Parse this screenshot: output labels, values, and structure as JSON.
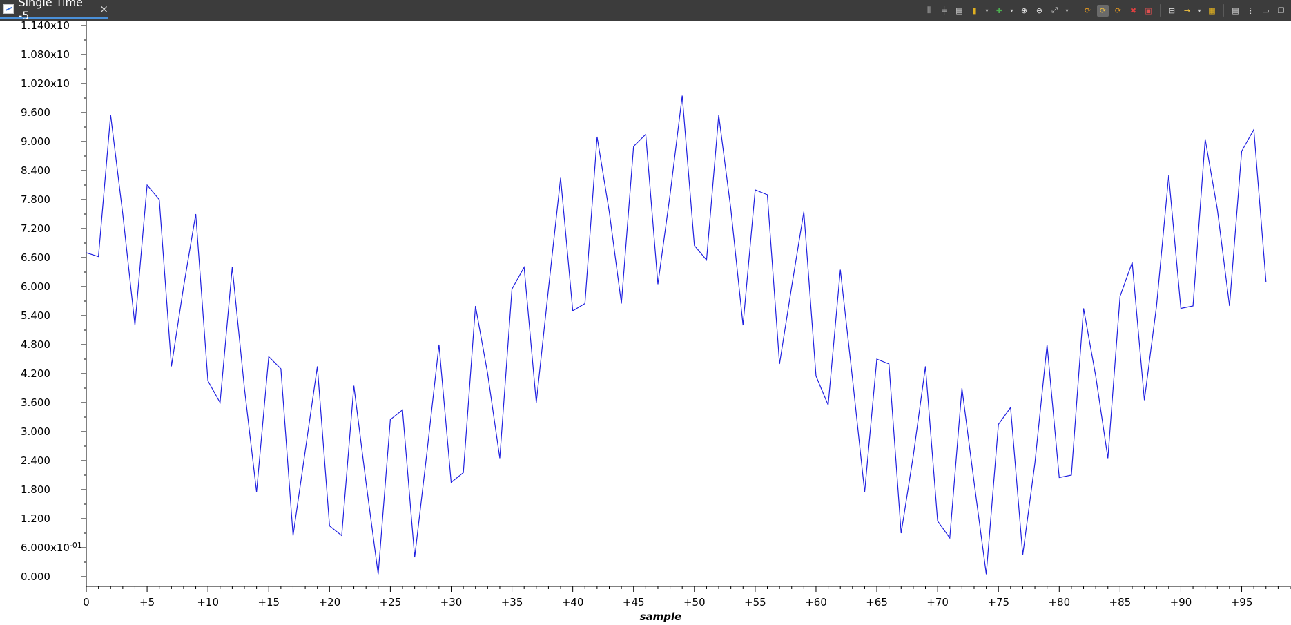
{
  "window": {
    "tab_title": "Single Time -5",
    "tab_close_glyph": "×"
  },
  "toolbar_icons": [
    {
      "name": "align-vertical-icon",
      "glyph": "⫼",
      "color": "#d8d8d8"
    },
    {
      "name": "align-horizontal-icon",
      "glyph": "╪",
      "color": "#d8d8d8"
    },
    {
      "name": "layout-icon",
      "glyph": "▤",
      "color": "#d8d8d8"
    },
    {
      "name": "measure-icon",
      "glyph": "▮",
      "color": "#e0b020"
    },
    {
      "name": "measure-dropdown-icon",
      "glyph": "▾",
      "color": "#cfcfcf",
      "dropdown": true
    },
    {
      "name": "plugin-icon",
      "glyph": "✚",
      "color": "#4caf50"
    },
    {
      "name": "plugin-dropdown-icon",
      "glyph": "▾",
      "color": "#cfcfcf",
      "dropdown": true
    },
    {
      "name": "zoom-in-icon",
      "glyph": "⊕",
      "color": "#e8e8e8"
    },
    {
      "name": "zoom-out-icon",
      "glyph": "⊖",
      "color": "#e8e8e8"
    },
    {
      "name": "zoom-fit-icon",
      "glyph": "⤢",
      "color": "#e8e8e8"
    },
    {
      "name": "zoom-dropdown-icon",
      "glyph": "▾",
      "color": "#cfcfcf",
      "dropdown": true
    },
    {
      "name": "separator",
      "separator": true
    },
    {
      "name": "refresh-icon",
      "glyph": "⟳",
      "color": "#f0a020"
    },
    {
      "name": "auto-refresh-icon",
      "glyph": "⟳",
      "color": "#f0c040",
      "active": true
    },
    {
      "name": "refresh-settings-icon",
      "glyph": "⟳",
      "color": "#f0a020"
    },
    {
      "name": "stop-refresh-icon",
      "glyph": "✖",
      "color": "#e04040"
    },
    {
      "name": "properties-icon",
      "glyph": "▣",
      "color": "#e05050"
    },
    {
      "name": "separator",
      "separator": true
    },
    {
      "name": "snapshot-icon",
      "glyph": "⊟",
      "color": "#d8d8d8"
    },
    {
      "name": "export-icon",
      "glyph": "→",
      "color": "#f0c040"
    },
    {
      "name": "export-dropdown-icon",
      "glyph": "▾",
      "color": "#cfcfcf",
      "dropdown": true
    },
    {
      "name": "graph-properties-icon",
      "glyph": "▦",
      "color": "#e0b020"
    },
    {
      "name": "separator",
      "separator": true
    },
    {
      "name": "table-icon",
      "glyph": "▤",
      "color": "#d8d8d8"
    },
    {
      "name": "more-menu-icon",
      "glyph": "⋮",
      "color": "#d8d8d8"
    },
    {
      "name": "minimize-icon",
      "glyph": "▭",
      "color": "#d8d8d8"
    },
    {
      "name": "maximize-icon",
      "glyph": "❐",
      "color": "#d8d8d8"
    }
  ],
  "chart_data": {
    "type": "line",
    "xlabel": "sample",
    "xlim": [
      0,
      99
    ],
    "ylim": [
      -0.2,
      11.5
    ],
    "grid": false,
    "line_color": "#2020e0",
    "y_ticks": [
      {
        "value": 0.0,
        "label": "0.000"
      },
      {
        "value": 0.6,
        "label": "6.000x10",
        "exp": "-01"
      },
      {
        "value": 1.2,
        "label": "1.200"
      },
      {
        "value": 1.8,
        "label": "1.800"
      },
      {
        "value": 2.4,
        "label": "2.400"
      },
      {
        "value": 3.0,
        "label": "3.000"
      },
      {
        "value": 3.6,
        "label": "3.600"
      },
      {
        "value": 4.2,
        "label": "4.200"
      },
      {
        "value": 4.8,
        "label": "4.800"
      },
      {
        "value": 5.4,
        "label": "5.400"
      },
      {
        "value": 6.0,
        "label": "6.000"
      },
      {
        "value": 6.6,
        "label": "6.600"
      },
      {
        "value": 7.2,
        "label": "7.200"
      },
      {
        "value": 7.8,
        "label": "7.800"
      },
      {
        "value": 8.4,
        "label": "8.400"
      },
      {
        "value": 9.0,
        "label": "9.000"
      },
      {
        "value": 9.6,
        "label": "9.600"
      },
      {
        "value": 10.2,
        "label": "1.020x10"
      },
      {
        "value": 10.8,
        "label": "1.080x10"
      },
      {
        "value": 11.4,
        "label": "1.140x10"
      }
    ],
    "x_ticks": [
      {
        "value": 0,
        "label": "0"
      },
      {
        "value": 5,
        "label": "+5"
      },
      {
        "value": 10,
        "label": "+10"
      },
      {
        "value": 15,
        "label": "+15"
      },
      {
        "value": 20,
        "label": "+20"
      },
      {
        "value": 25,
        "label": "+25"
      },
      {
        "value": 30,
        "label": "+30"
      },
      {
        "value": 35,
        "label": "+35"
      },
      {
        "value": 40,
        "label": "+40"
      },
      {
        "value": 45,
        "label": "+45"
      },
      {
        "value": 50,
        "label": "+50"
      },
      {
        "value": 55,
        "label": "+55"
      },
      {
        "value": 60,
        "label": "+60"
      },
      {
        "value": 65,
        "label": "+65"
      },
      {
        "value": 70,
        "label": "+70"
      },
      {
        "value": 75,
        "label": "+75"
      },
      {
        "value": 80,
        "label": "+80"
      },
      {
        "value": 85,
        "label": "+85"
      },
      {
        "value": 90,
        "label": "+90"
      },
      {
        "value": 95,
        "label": "+95"
      }
    ],
    "series": [
      {
        "values": [
          6.7,
          6.62,
          9.55,
          7.5,
          5.2,
          8.1,
          7.8,
          4.35,
          6.0,
          7.5,
          4.05,
          3.6,
          6.4,
          3.9,
          1.75,
          4.55,
          4.3,
          0.85,
          2.6,
          4.35,
          1.05,
          0.85,
          3.95,
          1.95,
          0.05,
          3.25,
          3.45,
          0.4,
          2.55,
          4.8,
          1.95,
          2.15,
          5.6,
          4.2,
          2.45,
          5.95,
          6.4,
          3.6,
          5.95,
          8.25,
          5.5,
          5.65,
          9.1,
          7.55,
          5.65,
          8.9,
          9.15,
          6.05,
          7.9,
          9.95,
          6.85,
          6.55,
          9.55,
          7.6,
          5.2,
          8.0,
          7.9,
          4.4,
          6.0,
          7.55,
          4.15,
          3.55,
          6.35,
          4.1,
          1.75,
          4.5,
          4.4,
          0.9,
          2.5,
          4.35,
          1.15,
          0.8,
          3.9,
          1.95,
          0.05,
          3.15,
          3.5,
          0.45,
          2.35,
          4.8,
          2.05,
          2.1,
          5.55,
          4.15,
          2.45,
          5.8,
          6.5,
          3.65,
          5.6,
          8.3,
          5.55,
          5.6,
          9.05,
          7.6,
          5.6,
          8.8,
          9.25,
          6.1
        ]
      }
    ]
  }
}
